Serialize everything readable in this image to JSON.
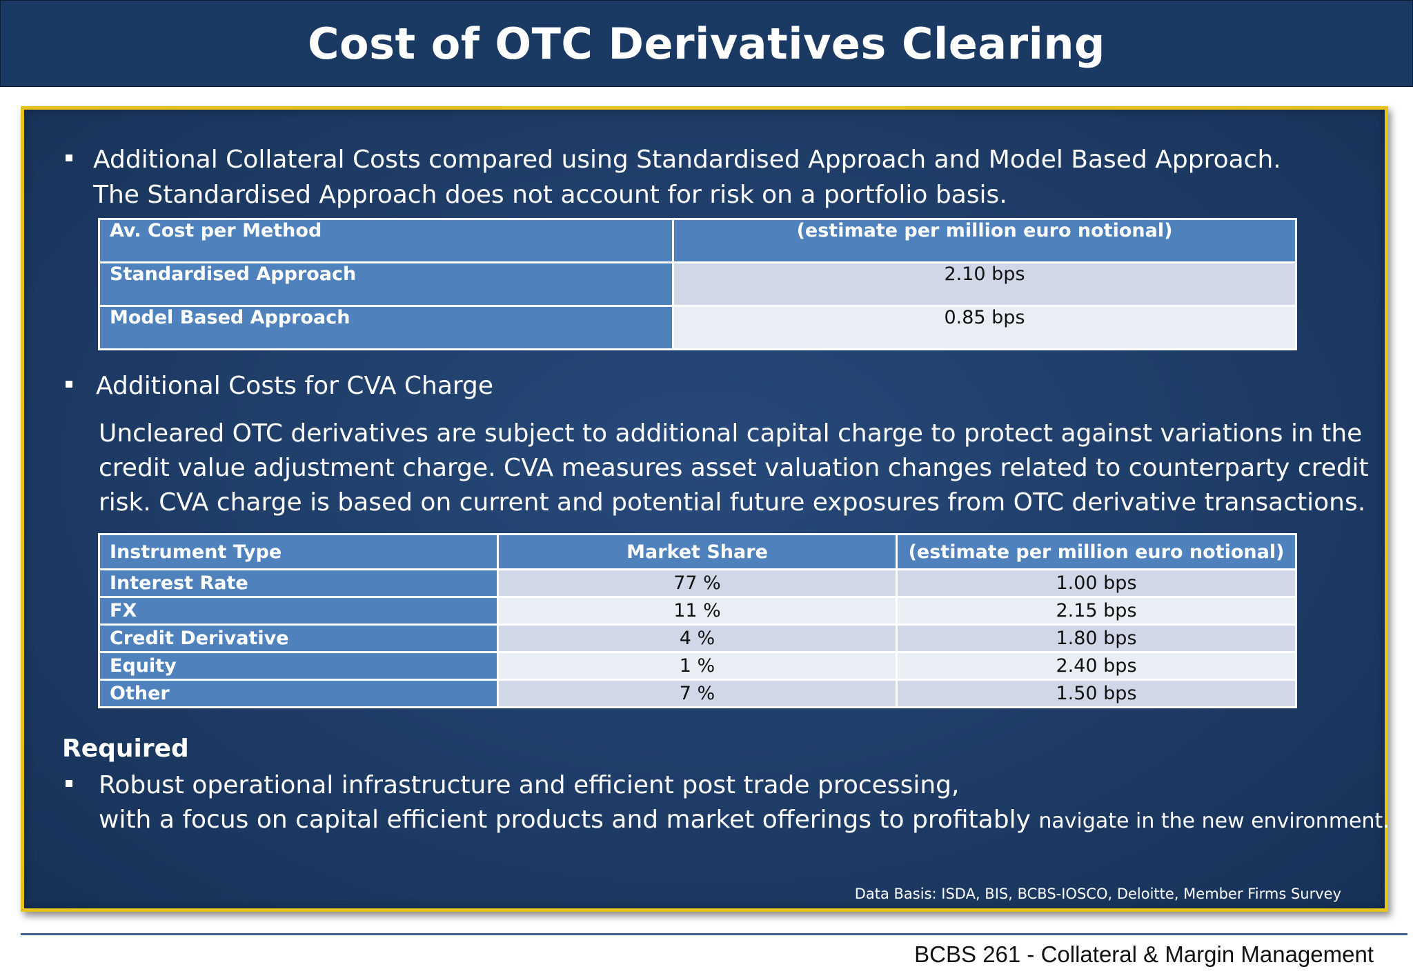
{
  "title": "Cost of OTC Derivatives Clearing",
  "section1": {
    "line1": "Additional Collateral Costs compared using Standardised Approach and Model Based Approach.",
    "line2": "The Standardised Approach does not account for risk on a portfolio basis."
  },
  "table1": {
    "headers": [
      "Av. Cost per Method",
      "(estimate per million euro notional)"
    ],
    "rows": [
      {
        "method": "Standardised Approach",
        "cost": "2.10 bps"
      },
      {
        "method": "Model Based Approach",
        "cost": "0.85 bps"
      }
    ]
  },
  "section2": {
    "heading": "Additional Costs for CVA Charge",
    "para1": "Uncleared OTC derivatives are subject to additional capital charge to protect against variations in the",
    "para2": "credit value adjustment charge. CVA measures asset valuation changes related to counterparty credit",
    "para3": "risk. CVA charge is based on current and potential future exposures from OTC derivative transactions."
  },
  "table2": {
    "headers": [
      "Instrument Type",
      "Market Share",
      "(estimate per million euro notional)"
    ],
    "rows": [
      {
        "type": "Interest Rate",
        "share": "77 %",
        "cost": "1.00 bps"
      },
      {
        "type": "FX",
        "share": "11 %",
        "cost": "2.15 bps"
      },
      {
        "type": "Credit Derivative",
        "share": "4 %",
        "cost": "1.80 bps"
      },
      {
        "type": "Equity",
        "share": "1 %",
        "cost": "2.40 bps"
      },
      {
        "type": "Other",
        "share": "7 %",
        "cost": "1.50 bps"
      }
    ]
  },
  "required": {
    "heading": "Required",
    "line1": "Robust operational infrastructure and efficient post trade processing,",
    "line2_main": "with a focus on capital efficient products and market offerings to profitably",
    "line2_tail": "navigate in the new environment."
  },
  "source": "Data Basis: ISDA, BIS, BCBS-IOSCO, Deloitte, Member Firms Survey",
  "footer": "BCBS 261 - Collateral & Margin Management"
}
